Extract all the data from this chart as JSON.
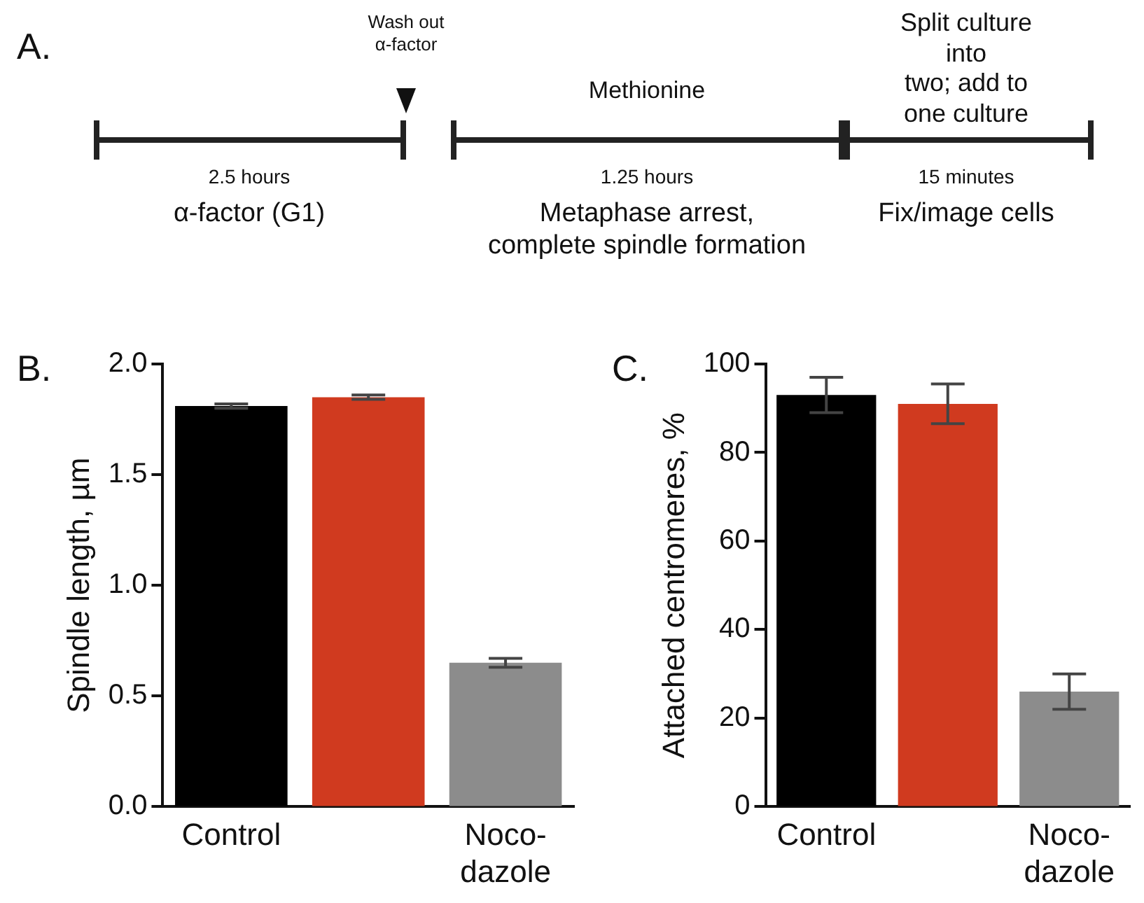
{
  "chart_data": [
    {
      "type": "other",
      "title": "A.",
      "annotations": [
        "Wash out\nα-factor",
        "Methionine",
        "Split culture into\ntwo; add to\none culture",
        "2.5 hours",
        "α-factor (G1)",
        "1.25 hours",
        "Metaphase arrest,\ncomplete spindle formation",
        "15 minutes",
        "Fix/image cells"
      ]
    },
    {
      "type": "bar",
      "title": "B.",
      "ylabel": "Spindle length, µm",
      "categories": [
        "Control",
        null,
        "Noco-\ndazole"
      ],
      "values": [
        1.81,
        1.85,
        0.65
      ],
      "errors": [
        0.01,
        0.01,
        0.02
      ],
      "colors": [
        "#000000",
        "#d03a1f",
        "#8c8c8c"
      ],
      "ylim": [
        0,
        2
      ],
      "yticks": [
        {
          "value": 0,
          "label": "0.0"
        },
        {
          "value": 0.5,
          "label": "0.5"
        },
        {
          "value": 1,
          "label": "1.0"
        },
        {
          "value": 1.5,
          "label": "1.5"
        },
        {
          "value": 2,
          "label": "2.0"
        }
      ],
      "grid": false,
      "legend": false
    },
    {
      "type": "bar",
      "title": "C.",
      "ylabel": "Attached centromeres, %",
      "categories": [
        "Control",
        null,
        "Noco-\ndazole"
      ],
      "values": [
        93,
        91,
        26
      ],
      "errors": [
        4,
        4.5,
        4
      ],
      "colors": [
        "#000000",
        "#d03a1f",
        "#8c8c8c"
      ],
      "ylim": [
        0,
        100
      ],
      "yticks": [
        0,
        20,
        40,
        60,
        80,
        100
      ],
      "grid": false,
      "legend": false
    }
  ]
}
